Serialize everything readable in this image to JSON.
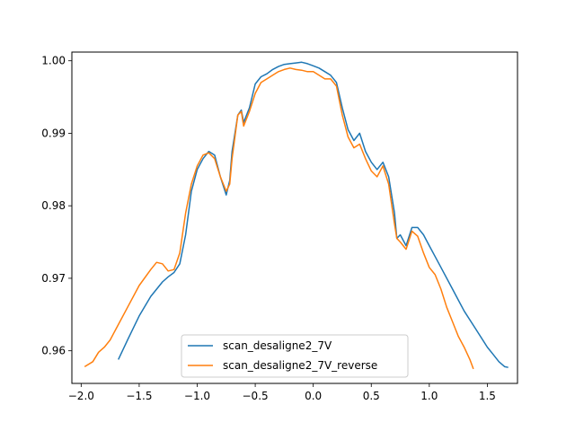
{
  "chart_data": {
    "type": "line",
    "title": "",
    "xlabel": "",
    "ylabel": "",
    "xlim": [
      -2.08,
      1.76
    ],
    "ylim": [
      0.9555,
      1.0012
    ],
    "xticks": [
      -2.0,
      -1.5,
      -1.0,
      -0.5,
      0.0,
      0.5,
      1.0,
      1.5
    ],
    "xtick_labels": [
      "−2.0",
      "−1.5",
      "−1.0",
      "−0.5",
      "0.0",
      "0.5",
      "1.0",
      "1.5"
    ],
    "yticks": [
      0.96,
      0.97,
      0.98,
      0.99,
      1.0
    ],
    "ytick_labels": [
      "0.96",
      "0.97",
      "0.98",
      "0.99",
      "1.00"
    ],
    "grid": false,
    "legend_position": "lower center",
    "series": [
      {
        "name": "scan_desaligne2_7V",
        "color": "#1f77b4",
        "x": [
          -1.68,
          -1.6,
          -1.5,
          -1.4,
          -1.3,
          -1.25,
          -1.2,
          -1.15,
          -1.1,
          -1.05,
          -1.0,
          -0.95,
          -0.9,
          -0.85,
          -0.8,
          -0.75,
          -0.72,
          -0.7,
          -0.65,
          -0.62,
          -0.6,
          -0.55,
          -0.5,
          -0.45,
          -0.4,
          -0.35,
          -0.3,
          -0.25,
          -0.2,
          -0.15,
          -0.1,
          -0.05,
          0.0,
          0.05,
          0.1,
          0.15,
          0.2,
          0.25,
          0.3,
          0.35,
          0.4,
          0.45,
          0.5,
          0.55,
          0.6,
          0.65,
          0.7,
          0.72,
          0.75,
          0.8,
          0.85,
          0.9,
          0.95,
          1.0,
          1.05,
          1.1,
          1.2,
          1.3,
          1.4,
          1.5,
          1.55,
          1.6,
          1.65,
          1.68
        ],
        "y": [
          0.9588,
          0.9615,
          0.9648,
          0.9675,
          0.9695,
          0.9702,
          0.9708,
          0.972,
          0.976,
          0.982,
          0.985,
          0.9865,
          0.9875,
          0.987,
          0.984,
          0.9815,
          0.9835,
          0.9875,
          0.9925,
          0.9932,
          0.9915,
          0.9935,
          0.9968,
          0.9978,
          0.9982,
          0.9988,
          0.9992,
          0.9995,
          0.9996,
          0.9997,
          0.9998,
          0.9996,
          0.9993,
          0.999,
          0.9985,
          0.998,
          0.997,
          0.9935,
          0.9905,
          0.989,
          0.99,
          0.9875,
          0.986,
          0.985,
          0.986,
          0.984,
          0.979,
          0.9755,
          0.976,
          0.9745,
          0.977,
          0.977,
          0.976,
          0.9745,
          0.973,
          0.9715,
          0.9685,
          0.9655,
          0.963,
          0.9605,
          0.9595,
          0.9585,
          0.9578,
          0.9577
        ]
      },
      {
        "name": "scan_desaligne2_7V_reverse",
        "color": "#ff7f0e",
        "x": [
          -1.97,
          -1.9,
          -1.85,
          -1.8,
          -1.75,
          -1.7,
          -1.6,
          -1.5,
          -1.4,
          -1.35,
          -1.3,
          -1.25,
          -1.2,
          -1.15,
          -1.1,
          -1.05,
          -1.0,
          -0.95,
          -0.9,
          -0.85,
          -0.8,
          -0.75,
          -0.72,
          -0.7,
          -0.65,
          -0.62,
          -0.6,
          -0.55,
          -0.5,
          -0.45,
          -0.4,
          -0.35,
          -0.3,
          -0.25,
          -0.2,
          -0.15,
          -0.1,
          -0.05,
          0.0,
          0.05,
          0.1,
          0.15,
          0.2,
          0.25,
          0.3,
          0.35,
          0.4,
          0.45,
          0.5,
          0.55,
          0.6,
          0.65,
          0.7,
          0.72,
          0.75,
          0.8,
          0.85,
          0.9,
          0.95,
          1.0,
          1.05,
          1.1,
          1.15,
          1.2,
          1.25,
          1.3,
          1.35,
          1.38
        ],
        "y": [
          0.9578,
          0.9585,
          0.9598,
          0.9605,
          0.9615,
          0.963,
          0.966,
          0.969,
          0.9712,
          0.9722,
          0.972,
          0.971,
          0.9712,
          0.9735,
          0.979,
          0.983,
          0.9855,
          0.987,
          0.9873,
          0.9865,
          0.984,
          0.982,
          0.983,
          0.9865,
          0.9925,
          0.993,
          0.991,
          0.993,
          0.9955,
          0.997,
          0.9975,
          0.998,
          0.9985,
          0.9988,
          0.999,
          0.9988,
          0.9987,
          0.9985,
          0.9985,
          0.998,
          0.9975,
          0.9975,
          0.9965,
          0.9925,
          0.9895,
          0.988,
          0.9885,
          0.9865,
          0.9848,
          0.984,
          0.9855,
          0.983,
          0.9775,
          0.9755,
          0.975,
          0.974,
          0.9765,
          0.9758,
          0.9735,
          0.9715,
          0.9705,
          0.9685,
          0.966,
          0.964,
          0.962,
          0.9605,
          0.9588,
          0.9575
        ]
      }
    ]
  }
}
